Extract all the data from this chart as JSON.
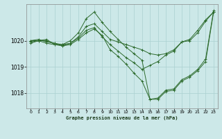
{
  "title": "Graphe pression niveau de la mer (hPa)",
  "bg_color": "#cce8e8",
  "grid_color": "#aad0d0",
  "line_color": "#2d6b2d",
  "xlim": [
    -0.5,
    23.5
  ],
  "ylim": [
    1017.4,
    1021.4
  ],
  "yticks": [
    1018,
    1019,
    1020
  ],
  "xticks": [
    0,
    1,
    2,
    3,
    4,
    5,
    6,
    7,
    8,
    9,
    10,
    11,
    12,
    13,
    14,
    15,
    16,
    17,
    18,
    19,
    20,
    21,
    22,
    23
  ],
  "series": [
    [
      1019.9,
      1020.0,
      1020.05,
      1019.85,
      1019.85,
      1019.9,
      1020.15,
      1020.55,
      1020.65,
      1020.35,
      1020.05,
      1019.95,
      1019.85,
      1019.75,
      1019.65,
      1019.5,
      1019.45,
      1019.5,
      1019.65,
      1019.95,
      1020.0,
      1020.3,
      1020.75,
      1021.1
    ],
    [
      1019.95,
      1020.0,
      1020.0,
      1019.9,
      1019.8,
      1019.9,
      1020.1,
      1020.4,
      1020.5,
      1020.15,
      1019.85,
      1019.6,
      1019.35,
      1019.15,
      1018.9,
      1019.05,
      1019.2,
      1019.45,
      1019.6,
      1019.95,
      1020.05,
      1020.4,
      1020.8,
      1021.1
    ],
    [
      1020.0,
      1020.05,
      1019.95,
      1019.9,
      1019.85,
      1020.0,
      1020.3,
      1020.85,
      1021.1,
      1020.7,
      1020.35,
      1020.05,
      1019.75,
      1019.5,
      1019.25,
      1017.75,
      1017.8,
      1018.1,
      1018.15,
      1018.5,
      1018.65,
      1018.9,
      1019.3,
      1021.15
    ],
    [
      1020.0,
      1020.0,
      1019.9,
      1019.85,
      1019.8,
      1019.85,
      1020.05,
      1020.3,
      1020.45,
      1020.2,
      1019.65,
      1019.4,
      1019.1,
      1018.75,
      1018.45,
      1017.75,
      1017.75,
      1018.05,
      1018.1,
      1018.45,
      1018.6,
      1018.85,
      1019.2,
      1021.1
    ]
  ]
}
